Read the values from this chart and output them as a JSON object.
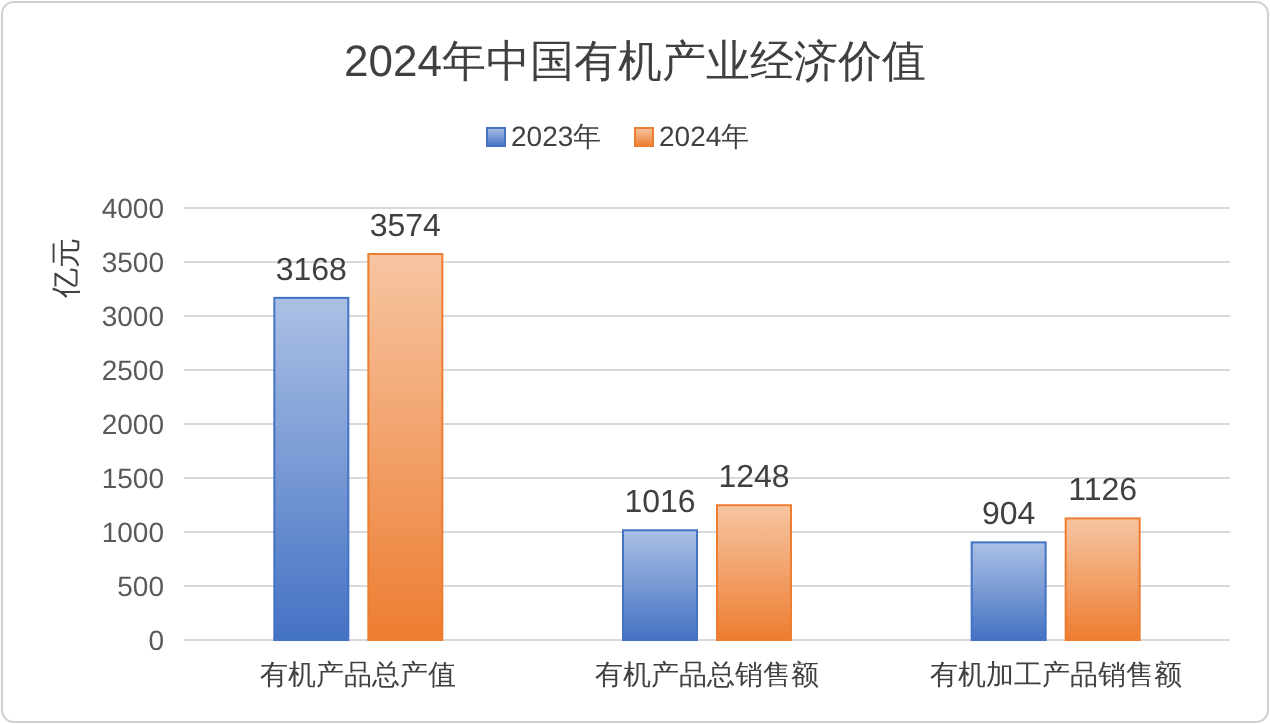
{
  "chart_data": {
    "type": "bar",
    "title": "2024年中国有机产业经济价值",
    "ylabel": "亿元",
    "categories": [
      "有机产品总产值",
      "有机产品总销售额",
      "有机加工产品销售额"
    ],
    "series": [
      {
        "name": "2023年",
        "color": "#4472c4",
        "values": [
          3168,
          1016,
          904
        ]
      },
      {
        "name": "2024年",
        "color": "#ed7d31",
        "values": [
          3574,
          1248,
          1126
        ]
      }
    ],
    "ylim": [
      0,
      4000
    ],
    "yticks": [
      0,
      500,
      1000,
      1500,
      2000,
      2500,
      3000,
      3500,
      4000
    ],
    "grid": "y",
    "legend": "top",
    "data_labels": true
  }
}
